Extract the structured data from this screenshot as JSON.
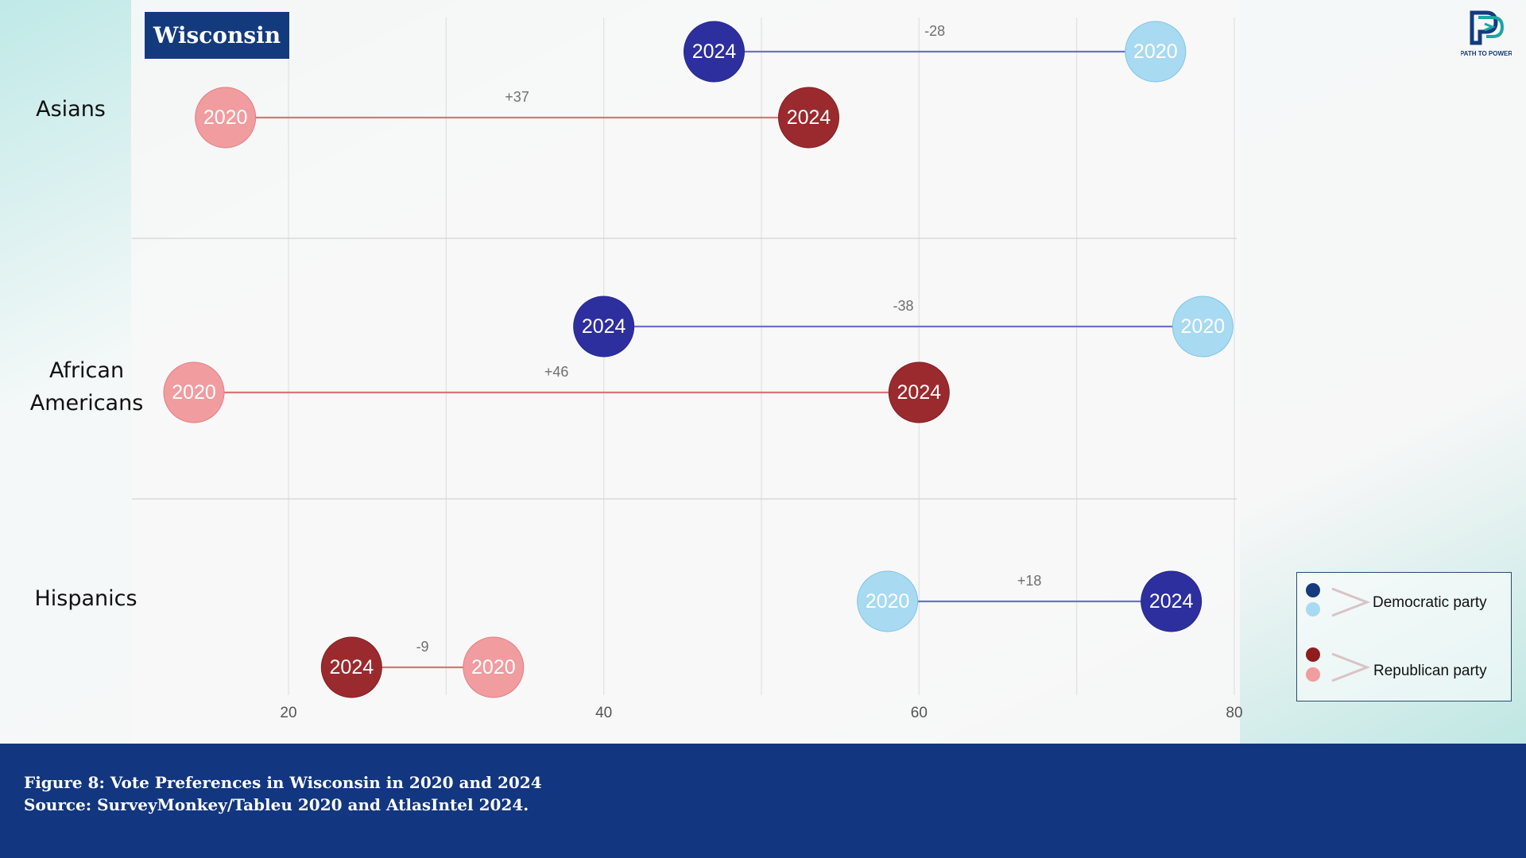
{
  "title": "Wisconsin",
  "caption": {
    "line1": "Figure 8: Vote Preferences in Wisconsin in 2020 and 2024",
    "line2": "Source: SurveyMonkey/Tableu 2020 and AtlasIntel 2024."
  },
  "logo": {
    "icon": "path-to-power-logo",
    "text": "PATH TO POWER"
  },
  "colors": {
    "dem_2024": "#2e2f9e",
    "dem_2020": "#a8daf2",
    "rep_2024": "#9b2a2e",
    "rep_2020": "#f19c9f",
    "dem_line": "#6c72cf",
    "rep_line": "#d9767a",
    "footer": "#12367f"
  },
  "legend": {
    "items": [
      {
        "label": "Democratic party",
        "colors": [
          "#163a7e",
          "#a8daf2"
        ]
      },
      {
        "label": "Republican party",
        "colors": [
          "#8f1c1e",
          "#f19c9f"
        ]
      }
    ]
  },
  "chart_data": {
    "type": "dumbbell",
    "xlim": [
      10,
      80
    ],
    "xticks": [
      20,
      40,
      60,
      80
    ],
    "grid": true,
    "legend_position": "bottom-right",
    "groups": [
      {
        "category": "Asians",
        "label_lines": [
          "Asians"
        ],
        "series": [
          {
            "party": "Democratic",
            "from": {
              "year": "2024",
              "value": 47
            },
            "to": {
              "year": "2020",
              "value": 75
            },
            "change": "-28"
          },
          {
            "party": "Republican",
            "from": {
              "year": "2020",
              "value": 16
            },
            "to": {
              "year": "2024",
              "value": 53
            },
            "change": "+37"
          }
        ]
      },
      {
        "category": "African Americans",
        "label_lines": [
          "African",
          "Americans"
        ],
        "series": [
          {
            "party": "Democratic",
            "from": {
              "year": "2024",
              "value": 40
            },
            "to": {
              "year": "2020",
              "value": 78
            },
            "change": "-38"
          },
          {
            "party": "Republican",
            "from": {
              "year": "2020",
              "value": 14
            },
            "to": {
              "year": "2024",
              "value": 60
            },
            "change": "+46"
          }
        ]
      },
      {
        "category": "Hispanics",
        "label_lines": [
          "Hispanics"
        ],
        "series": [
          {
            "party": "Democratic",
            "from": {
              "year": "2020",
              "value": 58
            },
            "to": {
              "year": "2024",
              "value": 76
            },
            "change": "+18"
          },
          {
            "party": "Republican",
            "from": {
              "year": "2024",
              "value": 24
            },
            "to": {
              "year": "2020",
              "value": 33
            },
            "change": "-9"
          }
        ]
      }
    ]
  }
}
